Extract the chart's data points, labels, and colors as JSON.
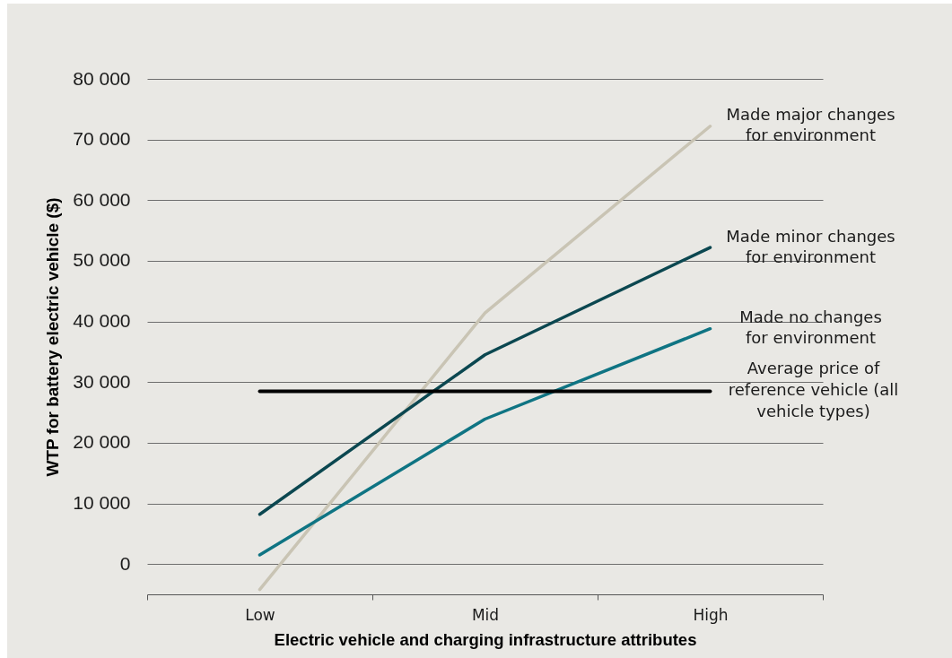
{
  "chart_data": {
    "type": "line",
    "xlabel": "Electric vehicle and charging infrastructure attributes",
    "ylabel": "WTP for battery electric vehicle ($)",
    "categories": [
      "Low",
      "Mid",
      "High"
    ],
    "series": [
      {
        "name": "Made major changes for environment",
        "color": "#c9c4b4",
        "values": [
          -4200,
          41400,
          72200
        ]
      },
      {
        "name": "Made minor changes for environment",
        "color": "#0b4750",
        "values": [
          8200,
          34500,
          52200
        ]
      },
      {
        "name": "Made no changes for environment",
        "color": "#0f7483",
        "values": [
          1500,
          23900,
          38800
        ]
      }
    ],
    "ylim": [
      -5000,
      80000
    ],
    "yticks": [
      0,
      {
        "value": 10000,
        "label": "10 000"
      },
      {
        "value": 20000,
        "label": "20 000"
      },
      {
        "value": 30000,
        "label": "30 000"
      },
      {
        "value": 40000,
        "label": "40 000"
      },
      {
        "value": 50000,
        "label": "50 000"
      },
      {
        "value": 60000,
        "label": "60 000"
      },
      {
        "value": 70000,
        "label": "70 000"
      },
      {
        "value": 80000,
        "label": "80 000"
      }
    ],
    "grid": "y",
    "legend": false,
    "ref_lines": [
      {
        "axis": "y",
        "value": 28500,
        "label": "Average price of reference vehicle (all vehicle types)",
        "color": "#000000"
      }
    ]
  }
}
